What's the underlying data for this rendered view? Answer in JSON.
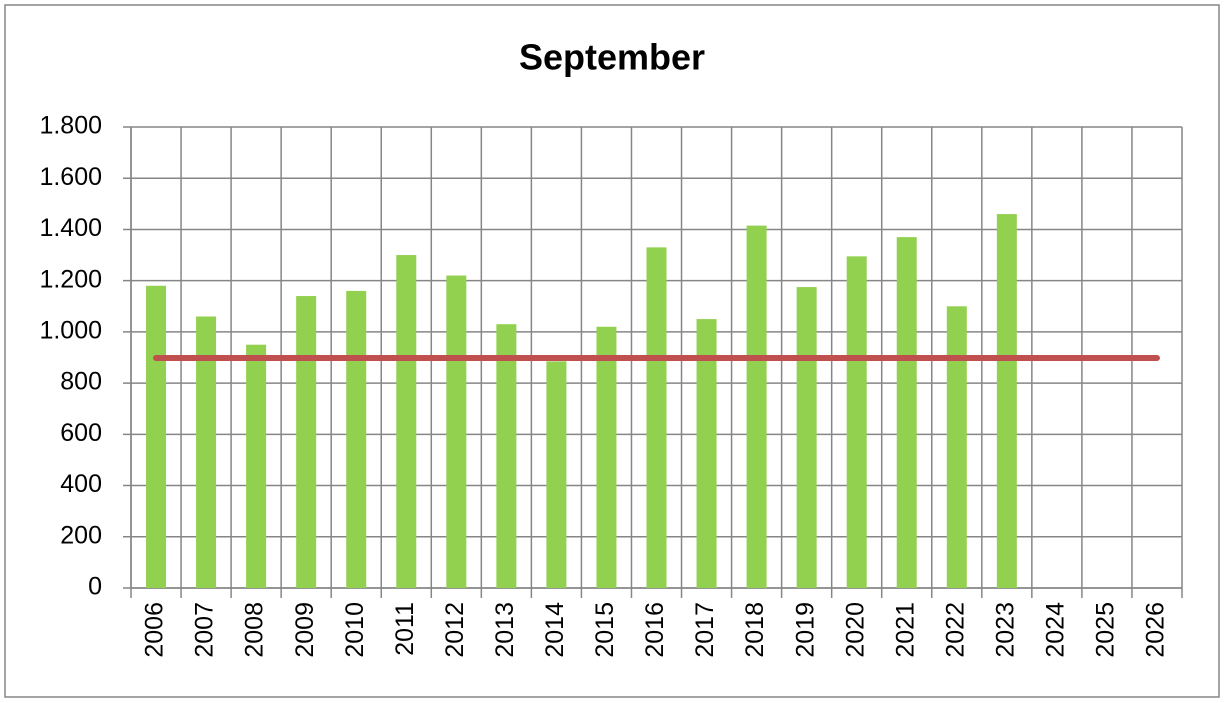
{
  "chart_data": {
    "type": "bar",
    "title": "September",
    "categories": [
      "2006",
      "2007",
      "2008",
      "2009",
      "2010",
      "2011",
      "2012",
      "2013",
      "2014",
      "2015",
      "2016",
      "2017",
      "2018",
      "2019",
      "2020",
      "2021",
      "2022",
      "2023",
      "2024",
      "2025",
      "2026"
    ],
    "series": [
      {
        "type": "bar",
        "color": "#92d050",
        "values": [
          1180,
          1060,
          950,
          1140,
          1160,
          1300,
          1220,
          1030,
          885,
          1020,
          1330,
          1050,
          1415,
          1175,
          1295,
          1370,
          1100,
          1460,
          null,
          null,
          null
        ]
      },
      {
        "type": "line",
        "color": "#c0504d",
        "values": [
          898,
          898,
          898,
          898,
          898,
          898,
          898,
          898,
          898,
          898,
          898,
          898,
          898,
          898,
          898,
          898,
          898,
          898,
          898,
          898,
          898
        ]
      }
    ],
    "ylim": [
      0,
      1800
    ],
    "yticks": [
      0,
      200,
      400,
      600,
      800,
      {
        "value": 1000,
        "label": "1.000"
      },
      {
        "value": 1200,
        "label": "1.200"
      },
      {
        "value": 1400,
        "label": "1.400"
      },
      {
        "value": 1600,
        "label": "1.600"
      },
      {
        "value": 1800,
        "label": "1.800"
      }
    ],
    "grid": true
  }
}
